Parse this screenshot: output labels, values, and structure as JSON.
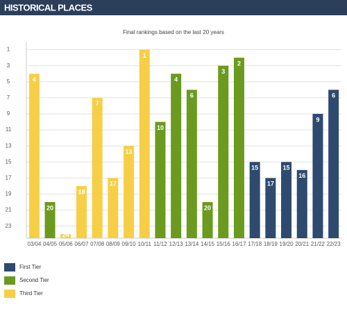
{
  "header": {
    "title": "HISTORICAL PLACES"
  },
  "chart_data": {
    "type": "bar",
    "subtitle": "Final rankings based on the last 20 years",
    "categories": [
      "03/04",
      "04/05",
      "05/06",
      "06/07",
      "07/08",
      "08/09",
      "09/10",
      "10/11",
      "11/12",
      "12/13",
      "13/14",
      "14/15",
      "15/16",
      "16/17",
      "17/18",
      "18/19",
      "19/20",
      "20/21",
      "21/22",
      "22/23"
    ],
    "series": [
      {
        "name": "First Tier",
        "color": "#2e4a6e",
        "values": [
          null,
          null,
          null,
          null,
          null,
          null,
          null,
          null,
          null,
          null,
          null,
          null,
          null,
          null,
          15,
          17,
          15,
          16,
          9,
          6
        ]
      },
      {
        "name": "Second Tier",
        "color": "#6b9a1f",
        "values": [
          null,
          20,
          null,
          null,
          null,
          null,
          null,
          null,
          10,
          4,
          6,
          20,
          3,
          2,
          null,
          null,
          null,
          null,
          null,
          null
        ]
      },
      {
        "name": "Third Tier",
        "color": "#f7cf47",
        "values": [
          4,
          null,
          24,
          18,
          7,
          17,
          13,
          1,
          null,
          null,
          null,
          null,
          null,
          null,
          null,
          null,
          null,
          null,
          null,
          null
        ]
      }
    ],
    "ylim": [
      24.5,
      0
    ],
    "yticks": [
      1,
      3,
      5,
      7,
      9,
      11,
      13,
      15,
      17,
      19,
      21,
      23
    ],
    "grid": true,
    "legend": "bottom-left"
  }
}
